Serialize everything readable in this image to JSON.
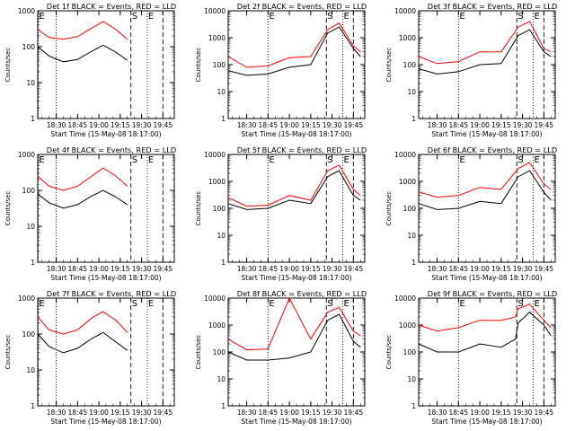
{
  "figure": {
    "colors": {
      "events": "#000000",
      "lld": "#ff0000",
      "axes": "#000000"
    }
  },
  "chart_data": [
    {
      "type": "line",
      "title": "Det 1f BLACK = Events, RED = LLD",
      "xlabel": "Start Time (15-May-08 18:17:00)",
      "ylabel": "Counts/sec",
      "x_tick_labels": [
        "18:30",
        "18:45",
        "19:00",
        "19:15",
        "19:30",
        "19:45"
      ],
      "y_tick_labels": [
        "1",
        "10",
        "100",
        "1000"
      ],
      "ylim": [
        1,
        1000
      ],
      "y_scale": "log",
      "markers": [
        {
          "label": "E",
          "style": "dotted"
        },
        {
          "label": "",
          "style": "dotted"
        },
        {
          "label": "S",
          "style": "dashed"
        },
        {
          "label": "E",
          "style": "dotted"
        },
        {
          "label": "",
          "style": "dashed"
        }
      ],
      "series": [
        {
          "name": "Events",
          "x": [
            "18:17",
            "18:25",
            "18:35",
            "18:45",
            "18:55",
            "19:03",
            "19:12",
            "19:20"
          ],
          "y": [
            100,
            55,
            38,
            44,
            75,
            110,
            70,
            42
          ]
        },
        {
          "name": "LLD",
          "x": [
            "18:17",
            "18:25",
            "18:35",
            "18:45",
            "18:55",
            "19:03",
            "19:12",
            "19:20"
          ],
          "y": [
            300,
            180,
            160,
            190,
            330,
            500,
            300,
            160
          ]
        }
      ]
    },
    {
      "type": "line",
      "title": "Det 2f BLACK = Events, RED = LLD",
      "xlabel": "Start Time (15-May-08 18:17:00)",
      "ylabel": "Counts/sec",
      "x_tick_labels": [
        "18:30",
        "18:45",
        "19:00",
        "19:15",
        "19:30",
        "19:45"
      ],
      "y_tick_labels": [
        "1",
        "10",
        "100",
        "1000",
        "10000"
      ],
      "ylim": [
        1,
        10000
      ],
      "y_scale": "log",
      "markers": [
        {
          "label": "E",
          "style": "dotted"
        },
        {
          "label": "S",
          "style": "dashed"
        },
        {
          "label": "E",
          "style": "dotted"
        },
        {
          "label": "",
          "style": "dashed"
        }
      ],
      "series": [
        {
          "name": "Events",
          "x": [
            "18:17",
            "18:30",
            "18:45",
            "19:00",
            "19:15",
            "19:27",
            "19:35",
            "19:45",
            "19:50"
          ],
          "y": [
            60,
            40,
            45,
            80,
            100,
            1500,
            2500,
            400,
            200
          ]
        },
        {
          "name": "LLD",
          "x": [
            "18:17",
            "18:30",
            "18:45",
            "19:00",
            "19:15",
            "19:27",
            "19:35",
            "19:45",
            "19:50"
          ],
          "y": [
            200,
            80,
            90,
            180,
            200,
            2000,
            3500,
            500,
            300
          ]
        }
      ]
    },
    {
      "type": "line",
      "title": "Det 3f BLACK = Events, RED = LLD",
      "xlabel": "Start Time (15-May-08 18:17:00)",
      "ylabel": "Counts/sec",
      "x_tick_labels": [
        "18:30",
        "18:45",
        "19:00",
        "19:15",
        "19:30",
        "19:45"
      ],
      "y_tick_labels": [
        "1",
        "10",
        "100",
        "1000",
        "10000"
      ],
      "ylim": [
        1,
        10000
      ],
      "y_scale": "log",
      "markers": [
        {
          "label": "E",
          "style": "dotted"
        },
        {
          "label": "S",
          "style": "dashed"
        },
        {
          "label": "E",
          "style": "dotted"
        },
        {
          "label": "",
          "style": "dashed"
        }
      ],
      "series": [
        {
          "name": "Events",
          "x": [
            "18:17",
            "18:30",
            "18:45",
            "19:00",
            "19:15",
            "19:27",
            "19:35",
            "19:45",
            "19:50"
          ],
          "y": [
            70,
            45,
            55,
            100,
            110,
            1200,
            2000,
            300,
            200
          ]
        },
        {
          "name": "LLD",
          "x": [
            "18:17",
            "18:30",
            "18:45",
            "19:00",
            "19:15",
            "19:27",
            "19:35",
            "19:45",
            "19:50"
          ],
          "y": [
            200,
            110,
            130,
            300,
            300,
            2500,
            4000,
            400,
            300
          ]
        }
      ]
    },
    {
      "type": "line",
      "title": "Det 4f BLACK = Events, RED = LLD",
      "xlabel": "Start Time (15-May-08 18:17:00)",
      "ylabel": "Counts/sec",
      "x_tick_labels": [
        "18:30",
        "18:45",
        "19:00",
        "19:15",
        "19:30",
        "19:45"
      ],
      "y_tick_labels": [
        "1",
        "10",
        "100",
        "1000"
      ],
      "ylim": [
        1,
        1000
      ],
      "y_scale": "log",
      "markers": [
        {
          "label": "E",
          "style": "dotted"
        },
        {
          "label": "",
          "style": "dotted"
        },
        {
          "label": "S",
          "style": "dashed"
        },
        {
          "label": "E",
          "style": "dotted"
        },
        {
          "label": "",
          "style": "dashed"
        }
      ],
      "series": [
        {
          "name": "Events",
          "x": [
            "18:17",
            "18:25",
            "18:35",
            "18:45",
            "18:55",
            "19:03",
            "19:12",
            "19:20"
          ],
          "y": [
            80,
            45,
            32,
            40,
            70,
            100,
            65,
            40
          ]
        },
        {
          "name": "LLD",
          "x": [
            "18:17",
            "18:25",
            "18:35",
            "18:45",
            "18:55",
            "19:03",
            "19:12",
            "19:20"
          ],
          "y": [
            250,
            130,
            100,
            130,
            250,
            420,
            250,
            130
          ]
        }
      ]
    },
    {
      "type": "line",
      "title": "Det 5f BLACK = Events, RED = LLD",
      "xlabel": "Start Time (15-May-08 18:17:00)",
      "ylabel": "Counts/sec",
      "x_tick_labels": [
        "18:30",
        "18:45",
        "19:00",
        "19:15",
        "19:30",
        "19:45"
      ],
      "y_tick_labels": [
        "1",
        "10",
        "100",
        "1000",
        "10000"
      ],
      "ylim": [
        1,
        10000
      ],
      "y_scale": "log",
      "markers": [
        {
          "label": "E",
          "style": "dotted"
        },
        {
          "label": "S",
          "style": "dashed"
        },
        {
          "label": "E",
          "style": "dotted"
        },
        {
          "label": "",
          "style": "dashed"
        }
      ],
      "series": [
        {
          "name": "Events",
          "x": [
            "18:17",
            "18:30",
            "18:45",
            "19:00",
            "19:15",
            "19:27",
            "19:35",
            "19:45",
            "19:50"
          ],
          "y": [
            150,
            90,
            100,
            200,
            150,
            1500,
            2500,
            300,
            200
          ]
        },
        {
          "name": "LLD",
          "x": [
            "18:17",
            "18:30",
            "18:45",
            "19:00",
            "19:15",
            "19:27",
            "19:35",
            "19:45",
            "19:50"
          ],
          "y": [
            250,
            120,
            130,
            300,
            200,
            2500,
            4000,
            500,
            300
          ]
        }
      ]
    },
    {
      "type": "line",
      "title": "Det 6f BLACK = Events, RED = LLD",
      "xlabel": "Start Time (15-May-08 18:17:00)",
      "ylabel": "Counts/sec",
      "x_tick_labels": [
        "18:30",
        "18:45",
        "19:00",
        "19:15",
        "19:30",
        "19:45"
      ],
      "y_tick_labels": [
        "1",
        "10",
        "100",
        "1000",
        "10000"
      ],
      "ylim": [
        1,
        10000
      ],
      "y_scale": "log",
      "markers": [
        {
          "label": "E",
          "style": "dotted"
        },
        {
          "label": "S",
          "style": "dashed"
        },
        {
          "label": "E",
          "style": "dotted"
        },
        {
          "label": "",
          "style": "dashed"
        }
      ],
      "series": [
        {
          "name": "Events",
          "x": [
            "18:17",
            "18:30",
            "18:45",
            "19:00",
            "19:15",
            "19:27",
            "19:35",
            "19:45",
            "19:50"
          ],
          "y": [
            150,
            90,
            100,
            180,
            150,
            1500,
            2500,
            400,
            200
          ]
        },
        {
          "name": "LLD",
          "x": [
            "18:17",
            "18:30",
            "18:45",
            "19:00",
            "19:15",
            "19:27",
            "19:35",
            "19:45",
            "19:50"
          ],
          "y": [
            400,
            260,
            300,
            600,
            500,
            3000,
            5000,
            800,
            500
          ]
        }
      ]
    },
    {
      "type": "line",
      "title": "Det 7f BLACK = Events, RED = LLD",
      "xlabel": "Start Time (15-May-08 18:17:00)",
      "ylabel": "Counts/sec",
      "x_tick_labels": [
        "18:30",
        "18:45",
        "19:00",
        "19:15",
        "19:30",
        "19:45"
      ],
      "y_tick_labels": [
        "1",
        "10",
        "100",
        "1000"
      ],
      "ylim": [
        1,
        1000
      ],
      "y_scale": "log",
      "markers": [
        {
          "label": "E",
          "style": "dotted"
        },
        {
          "label": "",
          "style": "dotted"
        },
        {
          "label": "S",
          "style": "dashed"
        },
        {
          "label": "E",
          "style": "dotted"
        },
        {
          "label": "",
          "style": "dashed"
        }
      ],
      "series": [
        {
          "name": "Events",
          "x": [
            "18:17",
            "18:25",
            "18:35",
            "18:45",
            "18:55",
            "19:03",
            "19:12",
            "19:20"
          ],
          "y": [
            100,
            45,
            30,
            40,
            75,
            110,
            60,
            35
          ]
        },
        {
          "name": "LLD",
          "x": [
            "18:17",
            "18:25",
            "18:35",
            "18:45",
            "18:55",
            "19:03",
            "19:12",
            "19:20"
          ],
          "y": [
            300,
            130,
            100,
            130,
            280,
            420,
            240,
            110
          ]
        }
      ]
    },
    {
      "type": "line",
      "title": "Det 8f BLACK = Events, RED = LLD",
      "xlabel": "Start Time (15-May-08 18:17:00)",
      "ylabel": "Counts/sec",
      "x_tick_labels": [
        "18:30",
        "18:45",
        "19:00",
        "19:15",
        "19:30",
        "19:45"
      ],
      "y_tick_labels": [
        "1",
        "10",
        "100",
        "1000",
        "10000"
      ],
      "ylim": [
        1,
        10000
      ],
      "y_scale": "log",
      "markers": [
        {
          "label": "E",
          "style": "dotted"
        },
        {
          "label": "S",
          "style": "dashed"
        },
        {
          "label": "E",
          "style": "dotted"
        },
        {
          "label": "",
          "style": "dashed"
        }
      ],
      "series": [
        {
          "name": "Events",
          "x": [
            "18:17",
            "18:30",
            "18:45",
            "19:00",
            "19:15",
            "19:27",
            "19:35",
            "19:45",
            "19:50"
          ],
          "y": [
            100,
            50,
            50,
            60,
            100,
            1500,
            2500,
            250,
            150
          ]
        },
        {
          "name": "LLD",
          "x": [
            "18:17",
            "18:30",
            "18:45",
            "19:00",
            "19:15",
            "19:27",
            "19:35",
            "19:45",
            "19:50"
          ],
          "y": [
            300,
            120,
            130,
            10000,
            300,
            3000,
            4500,
            600,
            400
          ]
        }
      ]
    },
    {
      "type": "line",
      "title": "Det 9f BLACK = Events, RED = LLD",
      "xlabel": "Start Time (15-May-08 18:17:00)",
      "ylabel": "Counts/sec",
      "x_tick_labels": [
        "18:30",
        "18:45",
        "19:00",
        "19:15",
        "19:30",
        "19:45"
      ],
      "y_tick_labels": [
        "1",
        "10",
        "100",
        "1000",
        "10000"
      ],
      "ylim": [
        1,
        10000
      ],
      "y_scale": "log",
      "markers": [
        {
          "label": "E",
          "style": "dotted"
        },
        {
          "label": "S",
          "style": "dashed"
        },
        {
          "label": "E",
          "style": "dotted"
        },
        {
          "label": "",
          "style": "dashed"
        }
      ],
      "series": [
        {
          "name": "Events",
          "x": [
            "18:17",
            "18:30",
            "18:45",
            "19:00",
            "19:15",
            "19:25",
            "19:27",
            "19:35",
            "19:45",
            "19:50"
          ],
          "y": [
            200,
            100,
            100,
            200,
            150,
            300,
            1200,
            3000,
            1000,
            400
          ]
        },
        {
          "name": "LLD",
          "x": [
            "18:17",
            "18:30",
            "18:45",
            "19:00",
            "19:15",
            "19:25",
            "19:27",
            "19:35",
            "19:45",
            "19:50"
          ],
          "y": [
            1000,
            600,
            800,
            1500,
            1500,
            2000,
            4000,
            6000,
            1500,
            800
          ]
        }
      ]
    }
  ]
}
